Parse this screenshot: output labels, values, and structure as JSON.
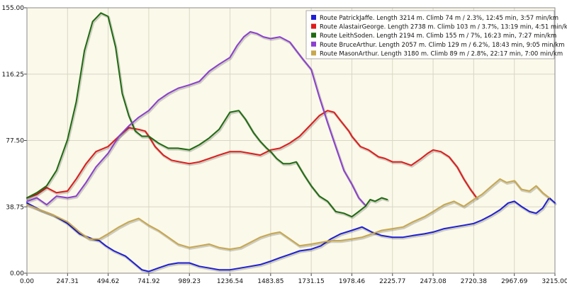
{
  "chart_data": {
    "type": "line",
    "xlabel": "",
    "ylabel": "",
    "xlim": [
      0,
      3215
    ],
    "ylim": [
      0,
      155
    ],
    "grid": true,
    "background_color": "#fbf9ea",
    "legend_position": "top-right",
    "x_ticks": [
      "0.00",
      "247.31",
      "494.62",
      "741.92",
      "989.23",
      "1236.54",
      "1483.85",
      "1731.15",
      "1978.46",
      "2225.77",
      "2473.08",
      "2720.38",
      "2967.69",
      "3215.00"
    ],
    "y_ticks": [
      "0.00",
      "38.75",
      "77.50",
      "116.25",
      "155.00"
    ],
    "series": [
      {
        "name": "Route PatrickJaffe. Length 3214 m. Climb 74 m / 2.3%, 12:45 min, 3:57 min/km",
        "color": "#1f1fd6",
        "x": [
          0,
          80,
          160,
          247,
          320,
          400,
          440,
          480,
          530,
          600,
          650,
          700,
          742,
          800,
          860,
          920,
          989,
          1050,
          1110,
          1170,
          1236,
          1300,
          1360,
          1420,
          1484,
          1540,
          1600,
          1660,
          1731,
          1790,
          1850,
          1910,
          1978,
          2040,
          2100,
          2160,
          2226,
          2290,
          2350,
          2420,
          2473,
          2540,
          2600,
          2660,
          2720,
          2770,
          2830,
          2880,
          2930,
          2968,
          3010,
          3060,
          3100,
          3140,
          3180,
          3215
        ],
        "y": [
          41,
          37,
          34,
          29,
          23,
          20,
          19,
          16,
          13,
          10,
          6,
          2,
          1,
          3,
          5,
          6,
          6,
          4,
          3,
          2,
          2,
          3,
          4,
          5,
          7,
          9,
          11,
          13,
          14,
          16,
          20,
          23,
          25,
          27,
          24,
          22,
          21,
          21,
          22,
          23,
          24,
          26,
          27,
          28,
          29,
          31,
          34,
          37,
          41,
          42,
          39,
          36,
          35,
          38,
          44,
          41
        ]
      },
      {
        "name": "Route AlastairGeorge. Length 2738 m. Climb 103 m / 3.7%, 13:19 min, 4:51 min/km",
        "color": "#e01b1b",
        "x": [
          0,
          60,
          120,
          180,
          247,
          300,
          360,
          420,
          494,
          560,
          620,
          680,
          720,
          742,
          780,
          830,
          880,
          930,
          989,
          1050,
          1110,
          1170,
          1236,
          1300,
          1360,
          1420,
          1484,
          1540,
          1600,
          1660,
          1731,
          1780,
          1830,
          1870,
          1910,
          1960,
          1978,
          2030,
          2080,
          2140,
          2180,
          2226,
          2280,
          2340,
          2400,
          2440,
          2473,
          2520,
          2570,
          2620,
          2660,
          2700,
          2738
        ],
        "y": [
          44,
          46,
          50,
          47,
          48,
          55,
          64,
          71,
          74,
          80,
          85,
          84,
          83,
          80,
          74,
          69,
          66,
          65,
          64,
          65,
          67,
          69,
          71,
          71,
          70,
          69,
          72,
          73,
          76,
          80,
          87,
          92,
          95,
          94,
          89,
          83,
          80,
          74,
          72,
          68,
          67,
          65,
          65,
          63,
          67,
          70,
          72,
          71,
          68,
          62,
          55,
          49,
          44
        ]
      },
      {
        "name": "Route LeithSoden. Length 2194 m. Climb 155 m / 7%, 16:23 min, 7:27 min/km",
        "color": "#1f6b12",
        "x": [
          0,
          60,
          120,
          180,
          247,
          300,
          350,
          400,
          450,
          494,
          540,
          580,
          620,
          660,
          700,
          742,
          800,
          860,
          920,
          989,
          1050,
          1110,
          1170,
          1236,
          1290,
          1330,
          1380,
          1420,
          1460,
          1484,
          1520,
          1560,
          1600,
          1640,
          1690,
          1731,
          1780,
          1830,
          1880,
          1930,
          1978,
          2020,
          2060,
          2090,
          2120,
          2160,
          2194
        ],
        "y": [
          44,
          47,
          51,
          60,
          78,
          100,
          130,
          147,
          152,
          150,
          132,
          105,
          92,
          83,
          80,
          80,
          76,
          73,
          73,
          72,
          75,
          79,
          84,
          94,
          95,
          90,
          82,
          77,
          73,
          71,
          67,
          64,
          64,
          65,
          57,
          51,
          45,
          42,
          36,
          35,
          33,
          36,
          39,
          43,
          42,
          44,
          43
        ]
      },
      {
        "name": "Route BruceArthur. Length 2057 m. Climb 129 m / 6.2%, 18:43 min, 9:05 min/km",
        "color": "#8c3fd0",
        "x": [
          0,
          60,
          120,
          180,
          247,
          300,
          360,
          420,
          494,
          560,
          620,
          680,
          742,
          800,
          860,
          920,
          989,
          1050,
          1110,
          1170,
          1236,
          1280,
          1320,
          1360,
          1400,
          1440,
          1484,
          1540,
          1600,
          1640,
          1680,
          1731,
          1780,
          1830,
          1880,
          1930,
          1978,
          2020,
          2057
        ],
        "y": [
          42,
          44,
          40,
          45,
          44,
          45,
          53,
          62,
          70,
          80,
          86,
          91,
          95,
          101,
          105,
          108,
          110,
          112,
          118,
          122,
          126,
          133,
          138,
          141,
          140,
          138,
          137,
          138,
          135,
          130,
          125,
          119,
          103,
          88,
          74,
          60,
          52,
          44,
          40
        ]
      },
      {
        "name": "Route MasonArthur. Length 3180 m. Climb 89 m / 2.8%, 22:17 min, 7:00 min/km",
        "color": "#c8a74d",
        "x": [
          0,
          80,
          160,
          247,
          320,
          380,
          440,
          494,
          560,
          620,
          680,
          742,
          800,
          860,
          920,
          989,
          1050,
          1110,
          1170,
          1236,
          1300,
          1360,
          1420,
          1484,
          1540,
          1600,
          1660,
          1731,
          1790,
          1850,
          1910,
          1978,
          2040,
          2100,
          2160,
          2226,
          2290,
          2350,
          2420,
          2473,
          2540,
          2600,
          2660,
          2720,
          2770,
          2830,
          2880,
          2920,
          2968,
          3010,
          3060,
          3100,
          3140,
          3180
        ],
        "y": [
          40,
          37,
          34,
          30,
          24,
          20,
          20,
          23,
          27,
          30,
          32,
          28,
          25,
          21,
          17,
          15,
          16,
          17,
          15,
          14,
          15,
          18,
          21,
          23,
          24,
          20,
          16,
          17,
          18,
          19,
          19,
          20,
          21,
          23,
          25,
          26,
          27,
          30,
          33,
          36,
          40,
          42,
          39,
          43,
          46,
          51,
          55,
          53,
          54,
          49,
          48,
          51,
          47,
          44
        ]
      }
    ]
  }
}
